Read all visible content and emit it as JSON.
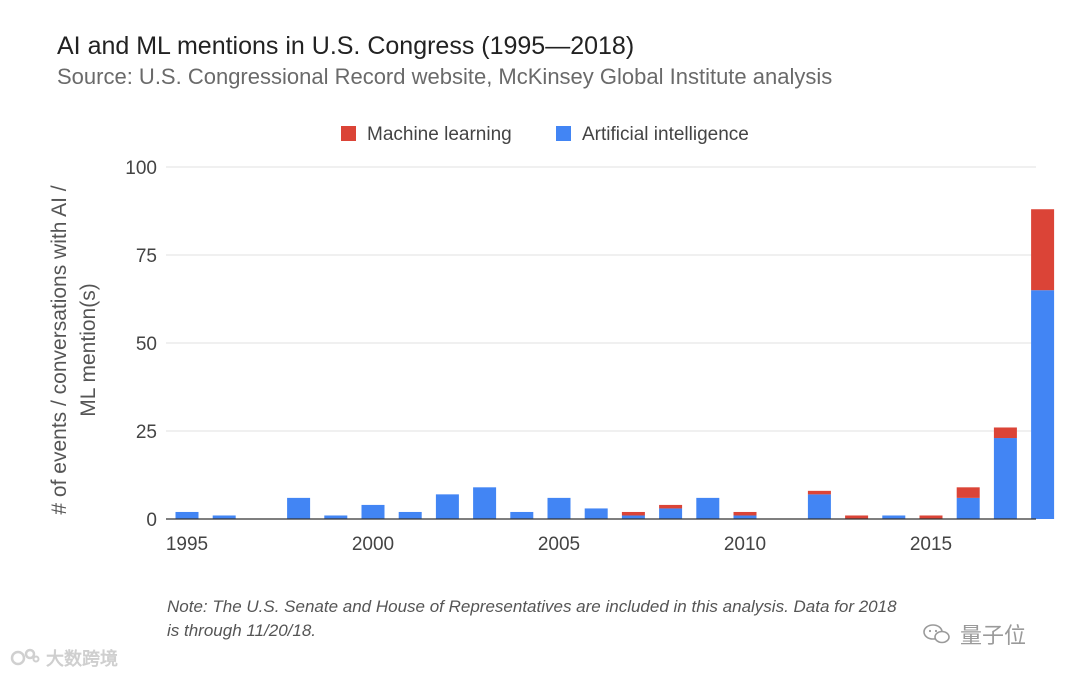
{
  "title": "AI and ML mentions in U.S. Congress (1995—2018)",
  "subtitle": "Source: U.S. Congressional Record website, McKinsey Global Institute analysis",
  "note_line1": "Note: The U.S. Senate and House of Representatives are included in this analysis. Data for 2018",
  "note_line2": "is through 11/20/18.",
  "watermark_left": "大数跨境",
  "watermark_right": "量子位",
  "colors": {
    "ml": "#db4437",
    "ai": "#4285f4",
    "grid": "#e0e0e0",
    "axis": "#333333"
  },
  "chart_data": {
    "type": "bar",
    "stacked": true,
    "title": "AI and ML mentions in U.S. Congress (1995—2018)",
    "ylabel": "# of events / conversations with AI / ML mention(s)",
    "xlabel": "",
    "ylim": [
      0,
      100
    ],
    "yticks": [
      0,
      25,
      50,
      75,
      100
    ],
    "xticks": [
      1995,
      2000,
      2005,
      2010,
      2015
    ],
    "legend_position": "top-center",
    "grid": true,
    "x": [
      1995,
      1996,
      1997,
      1998,
      1999,
      2000,
      2001,
      2002,
      2003,
      2004,
      2005,
      2006,
      2007,
      2008,
      2009,
      2010,
      2011,
      2012,
      2013,
      2014,
      2015,
      2016,
      2017,
      2018
    ],
    "series": [
      {
        "name": "Artificial intelligence",
        "color": "#4285f4",
        "values": [
          2,
          1,
          0,
          6,
          1,
          4,
          2,
          7,
          9,
          2,
          6,
          3,
          1,
          3,
          6,
          1,
          0,
          7,
          0,
          1,
          0,
          6,
          23,
          65
        ]
      },
      {
        "name": "Machine learning",
        "color": "#db4437",
        "values": [
          0,
          0,
          0,
          0,
          0,
          0,
          0,
          0,
          0,
          0,
          0,
          0,
          1,
          1,
          0,
          1,
          0,
          1,
          1,
          0,
          1,
          3,
          3,
          23
        ]
      }
    ],
    "legend": [
      "Machine learning",
      "Artificial intelligence"
    ]
  }
}
